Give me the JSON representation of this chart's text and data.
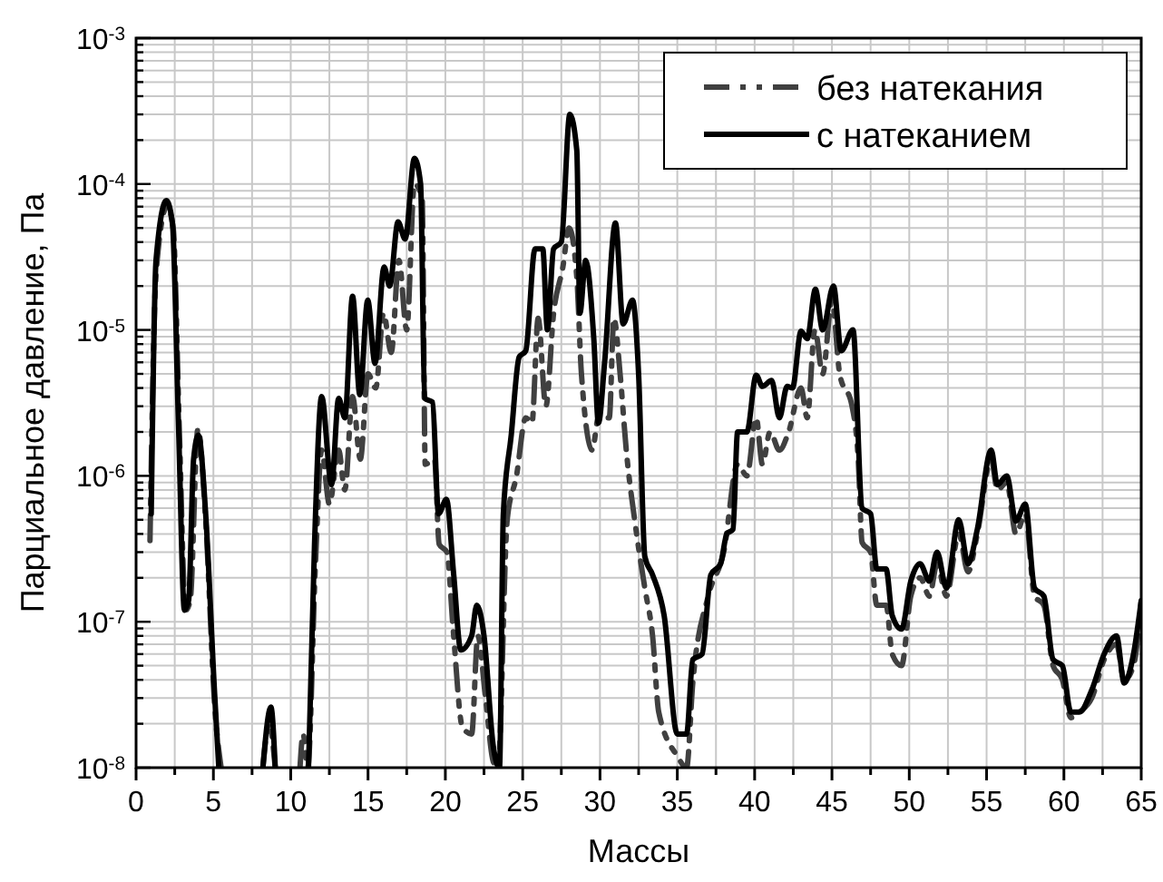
{
  "chart_data": {
    "type": "line",
    "xlabel": "Массы",
    "ylabel": "Парциальное давление, Па",
    "log": "y",
    "grid": true,
    "legend": "top right",
    "xlim": [
      0,
      65
    ],
    "ylim": [
      1e-08,
      0.001
    ],
    "xticks": [
      0,
      {
        "value": 2.5,
        "label": null
      },
      5,
      {
        "value": 7.5,
        "label": null
      },
      10,
      {
        "value": 12.5,
        "label": null
      },
      15,
      {
        "value": 17.5,
        "label": null
      },
      20,
      {
        "value": 22.5,
        "label": null
      },
      25,
      {
        "value": 27.5,
        "label": null
      },
      30,
      {
        "value": 32.5,
        "label": null
      },
      35,
      {
        "value": 37.5,
        "label": null
      },
      40,
      {
        "value": 42.5,
        "label": null
      },
      45,
      {
        "value": 47.5,
        "label": null
      },
      50,
      {
        "value": 52.5,
        "label": null
      },
      55,
      {
        "value": 57.5,
        "label": null
      },
      60,
      {
        "value": 62.5,
        "label": null
      },
      65
    ],
    "yticks": [
      {
        "value": 1e-08,
        "label": "10$^{-8}$"
      },
      {
        "value": 2e-08,
        "label": null
      },
      {
        "value": 3e-08,
        "label": null
      },
      {
        "value": 4e-08,
        "label": null
      },
      {
        "value": 5e-08,
        "label": null
      },
      {
        "value": 6e-08,
        "label": null
      },
      {
        "value": 7e-08,
        "label": null
      },
      {
        "value": 8e-08,
        "label": null
      },
      {
        "value": 9e-08,
        "label": null
      },
      {
        "value": 1e-07,
        "label": "10$^{-7}$"
      },
      {
        "value": 2e-07,
        "label": null
      },
      {
        "value": 3e-07,
        "label": null
      },
      {
        "value": 4e-07,
        "label": null
      },
      {
        "value": 5e-07,
        "label": null
      },
      {
        "value": 6e-07,
        "label": null
      },
      {
        "value": 7e-07,
        "label": null
      },
      {
        "value": 8e-07,
        "label": null
      },
      {
        "value": 9e-07,
        "label": null
      },
      {
        "value": 1e-06,
        "label": "10$^{-6}$"
      },
      {
        "value": 2e-06,
        "label": null
      },
      {
        "value": 3e-06,
        "label": null
      },
      {
        "value": 4e-06,
        "label": null
      },
      {
        "value": 5e-06,
        "label": null
      },
      {
        "value": 6e-06,
        "label": null
      },
      {
        "value": 7e-06,
        "label": null
      },
      {
        "value": 8e-06,
        "label": null
      },
      {
        "value": 9e-06,
        "label": null
      },
      {
        "value": 1e-05,
        "label": "10$^{-5}$"
      },
      {
        "value": 2e-05,
        "label": null
      },
      {
        "value": 3e-05,
        "label": null
      },
      {
        "value": 4e-05,
        "label": null
      },
      {
        "value": 5e-05,
        "label": null
      },
      {
        "value": 6e-05,
        "label": null
      },
      {
        "value": 7e-05,
        "label": null
      },
      {
        "value": 8e-05,
        "label": null
      },
      {
        "value": 9e-05,
        "label": null
      },
      {
        "value": 0.0001,
        "label": "10$^{-4}$"
      },
      {
        "value": 0.0002,
        "label": null
      },
      {
        "value": 0.0003,
        "label": null
      },
      {
        "value": 0.0004,
        "label": null
      },
      {
        "value": 0.0005,
        "label": null
      },
      {
        "value": 0.0006,
        "label": null
      },
      {
        "value": 0.0007,
        "label": null
      },
      {
        "value": 0.0008,
        "label": null
      },
      {
        "value": 0.0009,
        "label": null
      },
      {
        "value": 0.001,
        "label": "10$^{-3}$"
      }
    ],
    "series": [
      {
        "name": "без натекания",
        "color": "#404040",
        "line_style": "dashed",
        "x": [
          0.9,
          1.3,
          2.0,
          2.4,
          2.8,
          3.2,
          3.5,
          4.0,
          4.5,
          5.1,
          5.5,
          5.6,
          8.2,
          8.6,
          9.0,
          9.1,
          10.6,
          10.8,
          11.1,
          11.6,
          12.0,
          12.5,
          13.1,
          13.5,
          14.0,
          14.5,
          15.0,
          15.5,
          16.0,
          16.5,
          17.0,
          17.5,
          18.0,
          18.5,
          18.7,
          19.3,
          19.6,
          20.1,
          20.5,
          21.1,
          21.7,
          22.1,
          22.6,
          23.1,
          23.4,
          24.0,
          24.6,
          25.2,
          25.6,
          26.0,
          26.5,
          27.0,
          27.6,
          28.0,
          28.5,
          28.8,
          29.5,
          29.9,
          30.6,
          30.9,
          31.3,
          31.7,
          32.3,
          32.9,
          33.4,
          33.8,
          35.0,
          35.6,
          36.0,
          37.0,
          38.0,
          38.9,
          39.5,
          40.1,
          40.5,
          41.0,
          41.6,
          42.2,
          43.0,
          43.4,
          43.9,
          44.4,
          45.0,
          45.5,
          46.3,
          46.7,
          46.95,
          47.5,
          47.9,
          48.5,
          48.9,
          49.5,
          50.1,
          50.7,
          51.3,
          51.8,
          52.4,
          53.2,
          53.8,
          54.4,
          55.3,
          55.7,
          56.3,
          56.9,
          57.5,
          58.1,
          58.7,
          59.3,
          59.9,
          60.45,
          61.0,
          61.8,
          62.6,
          63.4,
          63.9,
          64.5,
          65
        ],
        "values": [
          3.6e-07,
          2.5e-05,
          7e-05,
          5e-05,
          2e-06,
          1.2e-07,
          1.4e-07,
          2.1e-06,
          5e-07,
          2.5e-08,
          1e-08,
          null,
          1e-08,
          2e-08,
          1e-08,
          null,
          1e-08,
          1.7e-08,
          1e-08,
          2.5e-07,
          1.5e-06,
          6.4e-07,
          1.5e-06,
          8e-07,
          3.5e-06,
          1.3e-06,
          5e-06,
          4e-06,
          1.3e-05,
          7e-06,
          3e-05,
          1e-05,
          0.0001,
          8e-05,
          1.2e-06,
          1.3e-06,
          3.4e-07,
          3e-07,
          9e-08,
          1.9e-08,
          1.7e-08,
          8e-08,
          3e-08,
          1.1e-08,
          1e-08,
          5e-07,
          1e-06,
          2.5e-06,
          2.3e-06,
          1.2e-05,
          3e-06,
          1.3e-05,
          2.7e-05,
          5e-05,
          2.3e-05,
          5e-06,
          1.5e-06,
          2.5e-06,
          2.5e-06,
          1.2e-05,
          5e-06,
          1.5e-06,
          4.5e-07,
          1.7e-07,
          8e-08,
          2.4e-08,
          1.2e-08,
          1e-08,
          3.8e-08,
          1.5e-07,
          3e-07,
          1.2e-06,
          1e-06,
          2.5e-06,
          1.2e-06,
          2e-06,
          1.5e-06,
          2e-06,
          4e-06,
          2.5e-06,
          1e-05,
          5e-06,
          1.6e-05,
          5e-06,
          3e-06,
          1.3e-06,
          3.5e-07,
          3e-07,
          1.3e-07,
          1.3e-07,
          6e-08,
          5e-08,
          1.5e-07,
          2e-07,
          1.5e-07,
          2.5e-07,
          1.5e-07,
          4e-07,
          2.2e-07,
          4e-07,
          1.3e-06,
          8e-07,
          9e-07,
          4e-07,
          5.5e-07,
          1.5e-07,
          1.3e-07,
          5e-08,
          4e-08,
          2.2e-08,
          2.4e-08,
          3e-08,
          5.5e-08,
          7e-08,
          4e-08,
          5e-08,
          1.4e-07
        ]
      },
      {
        "name": "с натеканием",
        "color": "#000000",
        "line_style": "solid",
        "x": [
          0.98,
          1.29,
          1.96,
          2.35,
          2.74,
          3.13,
          3.4,
          3.72,
          4.03,
          4.5,
          5.08,
          5.35,
          5.4,
          8.2,
          8.72,
          9.0,
          9.1,
          11.15,
          11.54,
          12.0,
          12.64,
          13.1,
          13.5,
          14.0,
          14.47,
          14.98,
          15.45,
          16.04,
          16.4,
          16.94,
          17.4,
          18.0,
          18.4,
          18.66,
          19.17,
          19.56,
          20.07,
          20.54,
          21.0,
          21.7,
          22.03,
          22.5,
          23.1,
          23.5,
          23.75,
          24.26,
          24.77,
          25.2,
          25.8,
          26.3,
          26.6,
          27.0,
          27.5,
          28.05,
          28.5,
          28.7,
          29.07,
          29.6,
          29.9,
          30.3,
          31.0,
          31.5,
          32.1,
          32.5,
          32.9,
          33.4,
          34.15,
          35.0,
          35.6,
          36.0,
          36.6,
          37.17,
          37.8,
          38.2,
          38.6,
          38.9,
          39.5,
          40.1,
          40.5,
          41.1,
          41.6,
          42.1,
          42.45,
          43.0,
          43.4,
          43.93,
          44.4,
          45.1,
          45.6,
          46.36,
          46.95,
          47.5,
          47.9,
          48.5,
          48.9,
          49.5,
          50.1,
          50.7,
          51.3,
          51.8,
          52.4,
          53.2,
          53.8,
          54.4,
          55.3,
          55.7,
          56.3,
          56.9,
          57.5,
          58.1,
          58.7,
          59.3,
          59.9,
          60.45,
          61.0,
          61.8,
          62.6,
          63.4,
          63.9,
          64.5,
          65
        ],
        "values": [
          5.5e-07,
          3e-05,
          7.7e-05,
          5.4e-05,
          2.3e-06,
          1.2e-07,
          1.4e-07,
          1.3e-06,
          1.9e-06,
          5.5e-07,
          3.2e-08,
          1e-08,
          null,
          1e-08,
          2.6e-08,
          1e-08,
          null,
          1e-08,
          3.4e-07,
          3.5e-06,
          8.7e-07,
          3.4e-06,
          2.5e-06,
          1.7e-05,
          3.6e-06,
          1.6e-05,
          5.9e-06,
          2.7e-05,
          2e-05,
          5.5e-05,
          4.2e-05,
          0.00015,
          0.0001,
          3.4e-06,
          3.2e-06,
          5.5e-07,
          6.9e-07,
          2.1e-07,
          6.4e-08,
          8e-08,
          1.3e-07,
          8e-08,
          1.4e-08,
          1e-08,
          5.5e-07,
          1.9e-06,
          6.5e-06,
          7.2e-06,
          3.6e-05,
          3.6e-05,
          1e-05,
          3.6e-05,
          4e-05,
          0.0003,
          0.00017,
          1.3e-05,
          3e-05,
          8.7e-06,
          2.3e-06,
          6e-06,
          5.4e-05,
          1.1e-05,
          1.6e-05,
          4.9e-06,
          2.8e-07,
          2.1e-07,
          1.1e-07,
          1.7e-08,
          1.7e-08,
          5.5e-08,
          6e-08,
          2.1e-07,
          2.5e-07,
          4e-07,
          4.3e-07,
          2e-06,
          2e-06,
          4.9e-06,
          4.1e-06,
          4.5e-06,
          2.5e-06,
          4.1e-06,
          4e-06,
          9.8e-06,
          8.7e-06,
          1.9e-05,
          1e-05,
          2e-05,
          7.2e-06,
          1e-05,
          6e-07,
          5.5e-07,
          2.3e-07,
          2.3e-07,
          1.1e-07,
          8.9e-08,
          1.9e-07,
          2.5e-07,
          1.9e-07,
          3e-07,
          1.7e-07,
          5e-07,
          2.5e-07,
          4.3e-07,
          1.5e-06,
          8.7e-07,
          1e-06,
          4.9e-07,
          6.4e-07,
          1.7e-07,
          1.5e-07,
          5.5e-08,
          5e-08,
          2.4e-08,
          2.4e-08,
          3.4e-08,
          6e-08,
          8e-08,
          3.8e-08,
          6e-08,
          1.4e-07
        ]
      }
    ]
  }
}
